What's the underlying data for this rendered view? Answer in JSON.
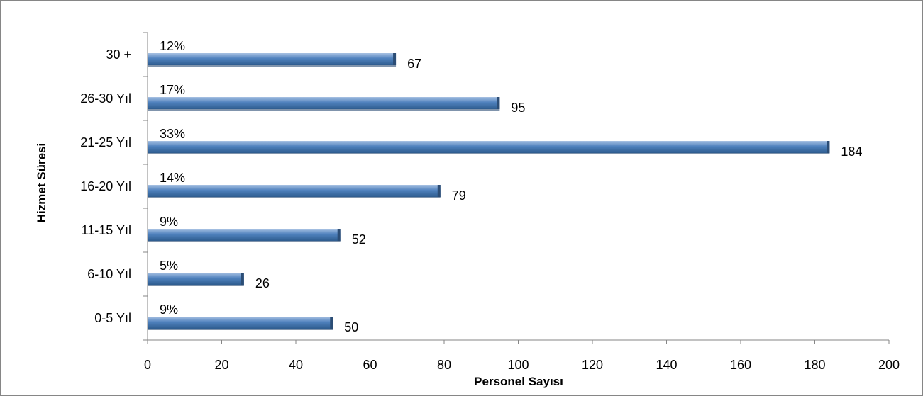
{
  "chart_data": {
    "type": "bar",
    "orientation": "horizontal",
    "categories": [
      "0-5 Yıl",
      "6-10 Yıl",
      "11-15 Yıl",
      "16-20 Yıl",
      "21-25 Yıl",
      "26-30 Yıl",
      "30 +"
    ],
    "values": [
      50,
      26,
      52,
      79,
      184,
      95,
      67
    ],
    "percent_labels": [
      "9%",
      "5%",
      "9%",
      "14%",
      "33%",
      "17%",
      "12%"
    ],
    "xlabel": "Personel Sayısı",
    "ylabel": "Hizmet Süresi",
    "xlim": [
      0,
      200
    ],
    "xticks": [
      0,
      20,
      40,
      60,
      80,
      100,
      120,
      140,
      160,
      180,
      200
    ],
    "grid": false,
    "legend": "none",
    "colors": {
      "bar": "#4f81bd",
      "bar_light": "#95b3d7",
      "bar_dark": "#2c4d75"
    }
  }
}
